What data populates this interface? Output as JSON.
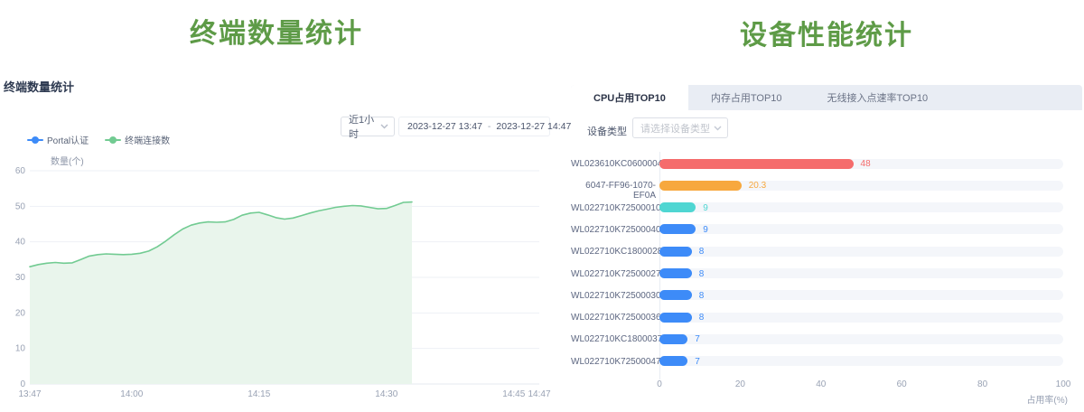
{
  "page": {
    "left_title": "终端数量统计",
    "right_title": "设备性能统计"
  },
  "left_panel": {
    "header": "终端数量统计",
    "time_range_value": "近1小时",
    "date_start": "2023-12-27 13:47",
    "date_separator": "-",
    "date_end": "2023-12-27 14:47",
    "legend": [
      {
        "label": "Portal认证",
        "color": "#3d8bf8"
      },
      {
        "label": "终端连接数",
        "color": "#72cb92"
      }
    ]
  },
  "right_panel": {
    "tabs": [
      {
        "label": "CPU占用TOP10",
        "active": true
      },
      {
        "label": "内存占用TOP10",
        "active": false
      },
      {
        "label": "无线接入点速率TOP10",
        "active": false
      }
    ],
    "device_type_label": "设备类型",
    "device_type_placeholder": "请选择设备类型"
  },
  "chart_data": [
    {
      "type": "area",
      "title": "终端数量统计",
      "ylabel": "数量(个)",
      "ylim": [
        0,
        60
      ],
      "yticks": [
        0,
        10,
        20,
        30,
        40,
        50,
        60
      ],
      "xticks": [
        {
          "label": "13:47",
          "minute": 0
        },
        {
          "label": "14:00",
          "minute": 12
        },
        {
          "label": "14:15",
          "minute": 27
        },
        {
          "label": "14:30",
          "minute": 42
        },
        {
          "label": "14:45",
          "minute": 57
        },
        {
          "label": "14:47",
          "minute": 60
        }
      ],
      "grid": true,
      "legend_position": "top-left",
      "series": [
        {
          "name": "Portal认证",
          "color": "#3d8bf8",
          "points": []
        },
        {
          "name": "终端连接数",
          "color": "#72cb92",
          "area_fill": "#e9f5ec",
          "points": [
            [
              0,
              33
            ],
            [
              1,
              33.6
            ],
            [
              2,
              34
            ],
            [
              3,
              34.2
            ],
            [
              4,
              34
            ],
            [
              5,
              34.1
            ],
            [
              6,
              35
            ],
            [
              7,
              36
            ],
            [
              8,
              36.4
            ],
            [
              9,
              36.6
            ],
            [
              10,
              36.5
            ],
            [
              11,
              36.4
            ],
            [
              12,
              36.5
            ],
            [
              13,
              36.8
            ],
            [
              14,
              37.4
            ],
            [
              15,
              38.6
            ],
            [
              16,
              40.2
            ],
            [
              17,
              42
            ],
            [
              18,
              43.6
            ],
            [
              19,
              44.7
            ],
            [
              20,
              45.3
            ],
            [
              21,
              45.6
            ],
            [
              22,
              45.5
            ],
            [
              23,
              45.6
            ],
            [
              24,
              46.3
            ],
            [
              25,
              47.5
            ],
            [
              26,
              48.1
            ],
            [
              27,
              48.3
            ],
            [
              28,
              47.6
            ],
            [
              29,
              46.8
            ],
            [
              30,
              46.4
            ],
            [
              31,
              46.7
            ],
            [
              32,
              47.4
            ],
            [
              33,
              48.1
            ],
            [
              34,
              48.7
            ],
            [
              35,
              49.2
            ],
            [
              36,
              49.7
            ],
            [
              37,
              50
            ],
            [
              38,
              50.2
            ],
            [
              39,
              50.1
            ],
            [
              40,
              49.7
            ],
            [
              41,
              49.3
            ],
            [
              42,
              49.4
            ],
            [
              43,
              50.2
            ],
            [
              44,
              51.1
            ],
            [
              45,
              51.2
            ]
          ]
        }
      ]
    },
    {
      "type": "bar",
      "orientation": "horizontal",
      "xlabel": "占用率(%)",
      "xlim": [
        0,
        100
      ],
      "xticks": [
        0,
        20,
        40,
        60,
        80,
        100
      ],
      "categories": [
        "WL023610KC06000043",
        "6047-FF96-1070-EF0A",
        "WL022710K725000102",
        "WL022710K725000409",
        "WL022710KC18000280",
        "WL022710K725000272",
        "WL022710K725000307",
        "WL022710K725000369",
        "WL022710KC18000372",
        "WL022710K725000470"
      ],
      "values": [
        48,
        20.3,
        9,
        9,
        8,
        8,
        8,
        8,
        7,
        7
      ],
      "bar_colors": [
        "#f56c6c",
        "#f7a83e",
        "#4fd6d2",
        "#3d8bf8",
        "#3d8bf8",
        "#3d8bf8",
        "#3d8bf8",
        "#3d8bf8",
        "#3d8bf8",
        "#3d8bf8"
      ]
    }
  ]
}
